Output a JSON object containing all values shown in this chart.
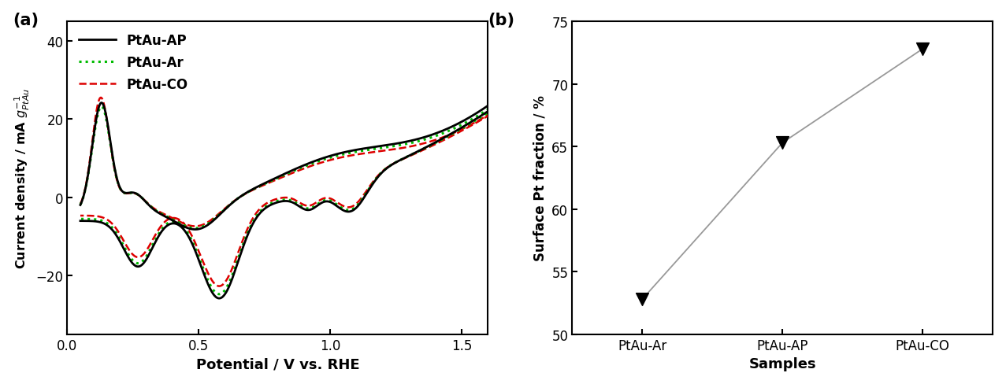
{
  "panel_a_label": "(a)",
  "panel_b_label": "(b)",
  "cv_xlabel": "Potential / V vs. RHE",
  "cv_ylabel": "Current density / mA $g_{PtAu}^{-1}$",
  "cv_xlim": [
    0.0,
    1.6
  ],
  "cv_ylim": [
    -35,
    45
  ],
  "cv_xticks": [
    0.0,
    0.5,
    1.0,
    1.5
  ],
  "cv_yticks": [
    -20,
    0,
    20,
    40
  ],
  "legend_labels": [
    "PtAu-AP",
    "PtAu-Ar",
    "PtAu-CO"
  ],
  "legend_colors": [
    "#000000",
    "#00bb00",
    "#dd0000"
  ],
  "scatter_xlabel": "Samples",
  "scatter_ylabel": "Surface Pt fraction / %",
  "scatter_xlabels": [
    "PtAu-Ar",
    "PtAu-AP",
    "PtAu-CO"
  ],
  "scatter_values": [
    52.8,
    65.3,
    72.8
  ],
  "scatter_ylim": [
    50,
    75
  ],
  "scatter_yticks": [
    50,
    55,
    60,
    65,
    70,
    75
  ],
  "scatter_color": "#000000",
  "line_color": "#999999",
  "bg_color": "#ffffff"
}
